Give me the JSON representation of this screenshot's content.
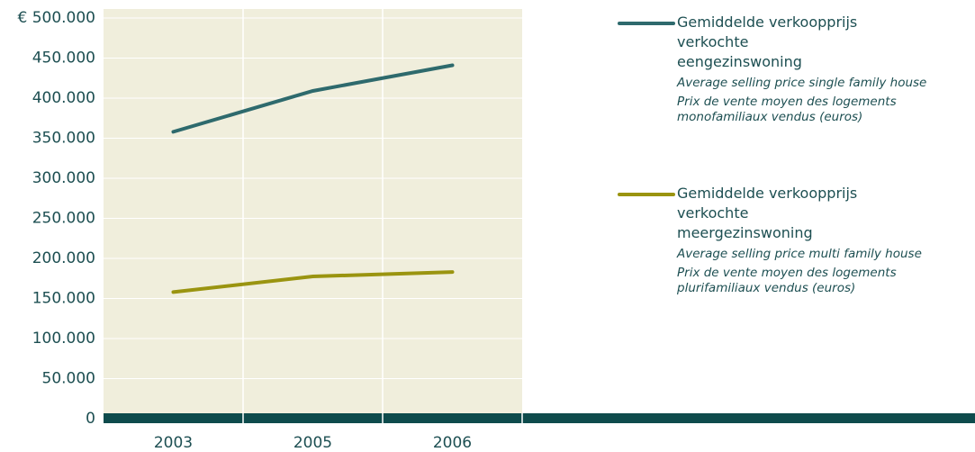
{
  "chart_data": {
    "type": "line",
    "categories": [
      "2003",
      "2005",
      "2006"
    ],
    "series": [
      {
        "name": "Gemiddelde verkoopprijs verkochte eengezinswoning",
        "color": "#2e6a6d",
        "description_en": "Average selling price single family house",
        "description_fr": "Prix de vente moyen des logements monofamiliaux vendus (euros)",
        "values": [
          358000,
          409000,
          441000
        ]
      },
      {
        "name": "Gemiddelde verkoopprijs verkochte meergezinswoning",
        "color": "#9a9410",
        "description_en": "Average selling price multi family house",
        "description_fr": "Prix de vente moyen des logements plurifamiliaux vendus (euros)",
        "values": [
          158000,
          177500,
          183000
        ]
      }
    ],
    "ylim": [
      0,
      500000
    ],
    "yticks": [
      {
        "value": 0,
        "label": "0"
      },
      {
        "value": 50000,
        "label": "50.000"
      },
      {
        "value": 100000,
        "label": "100.000"
      },
      {
        "value": 150000,
        "label": "150.000"
      },
      {
        "value": 200000,
        "label": "200.000"
      },
      {
        "value": 250000,
        "label": "250.000"
      },
      {
        "value": 300000,
        "label": "300.000"
      },
      {
        "value": 350000,
        "label": "350.000"
      },
      {
        "value": 400000,
        "label": "400.000"
      },
      {
        "value": 450000,
        "label": "450.000"
      },
      {
        "value": 500000,
        "label": "€ 500.000"
      }
    ],
    "grid": true
  }
}
